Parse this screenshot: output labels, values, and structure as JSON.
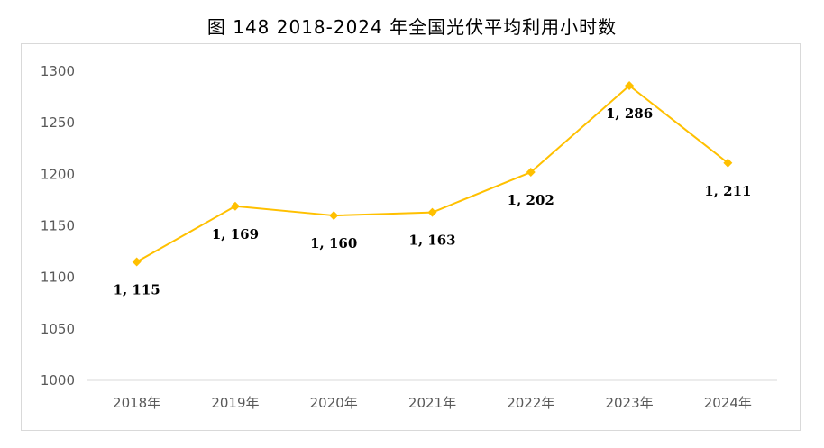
{
  "title": "图 148 2018-2024 年全国光伏平均利用小时数",
  "chart_data": {
    "type": "line",
    "title": "图 148 2018-2024 年全国光伏平均利用小时数",
    "xlabel": "",
    "ylabel": "",
    "categories": [
      "2018年",
      "2019年",
      "2020年",
      "2021年",
      "2022年",
      "2023年",
      "2024年"
    ],
    "series": [
      {
        "values": [
          1115,
          1169,
          1160,
          1163,
          1202,
          1286,
          1211
        ],
        "data_labels": [
          "1, 115",
          "1, 169",
          "1, 160",
          "1, 163",
          "1, 202",
          "1, 286",
          "1, 211"
        ],
        "color": "#FFC000",
        "marker": "diamond"
      }
    ],
    "ylim": [
      1000,
      1300
    ],
    "yticks": [
      1000,
      1050,
      1100,
      1150,
      1200,
      1250,
      1300
    ],
    "grid": false,
    "legend": "none"
  }
}
